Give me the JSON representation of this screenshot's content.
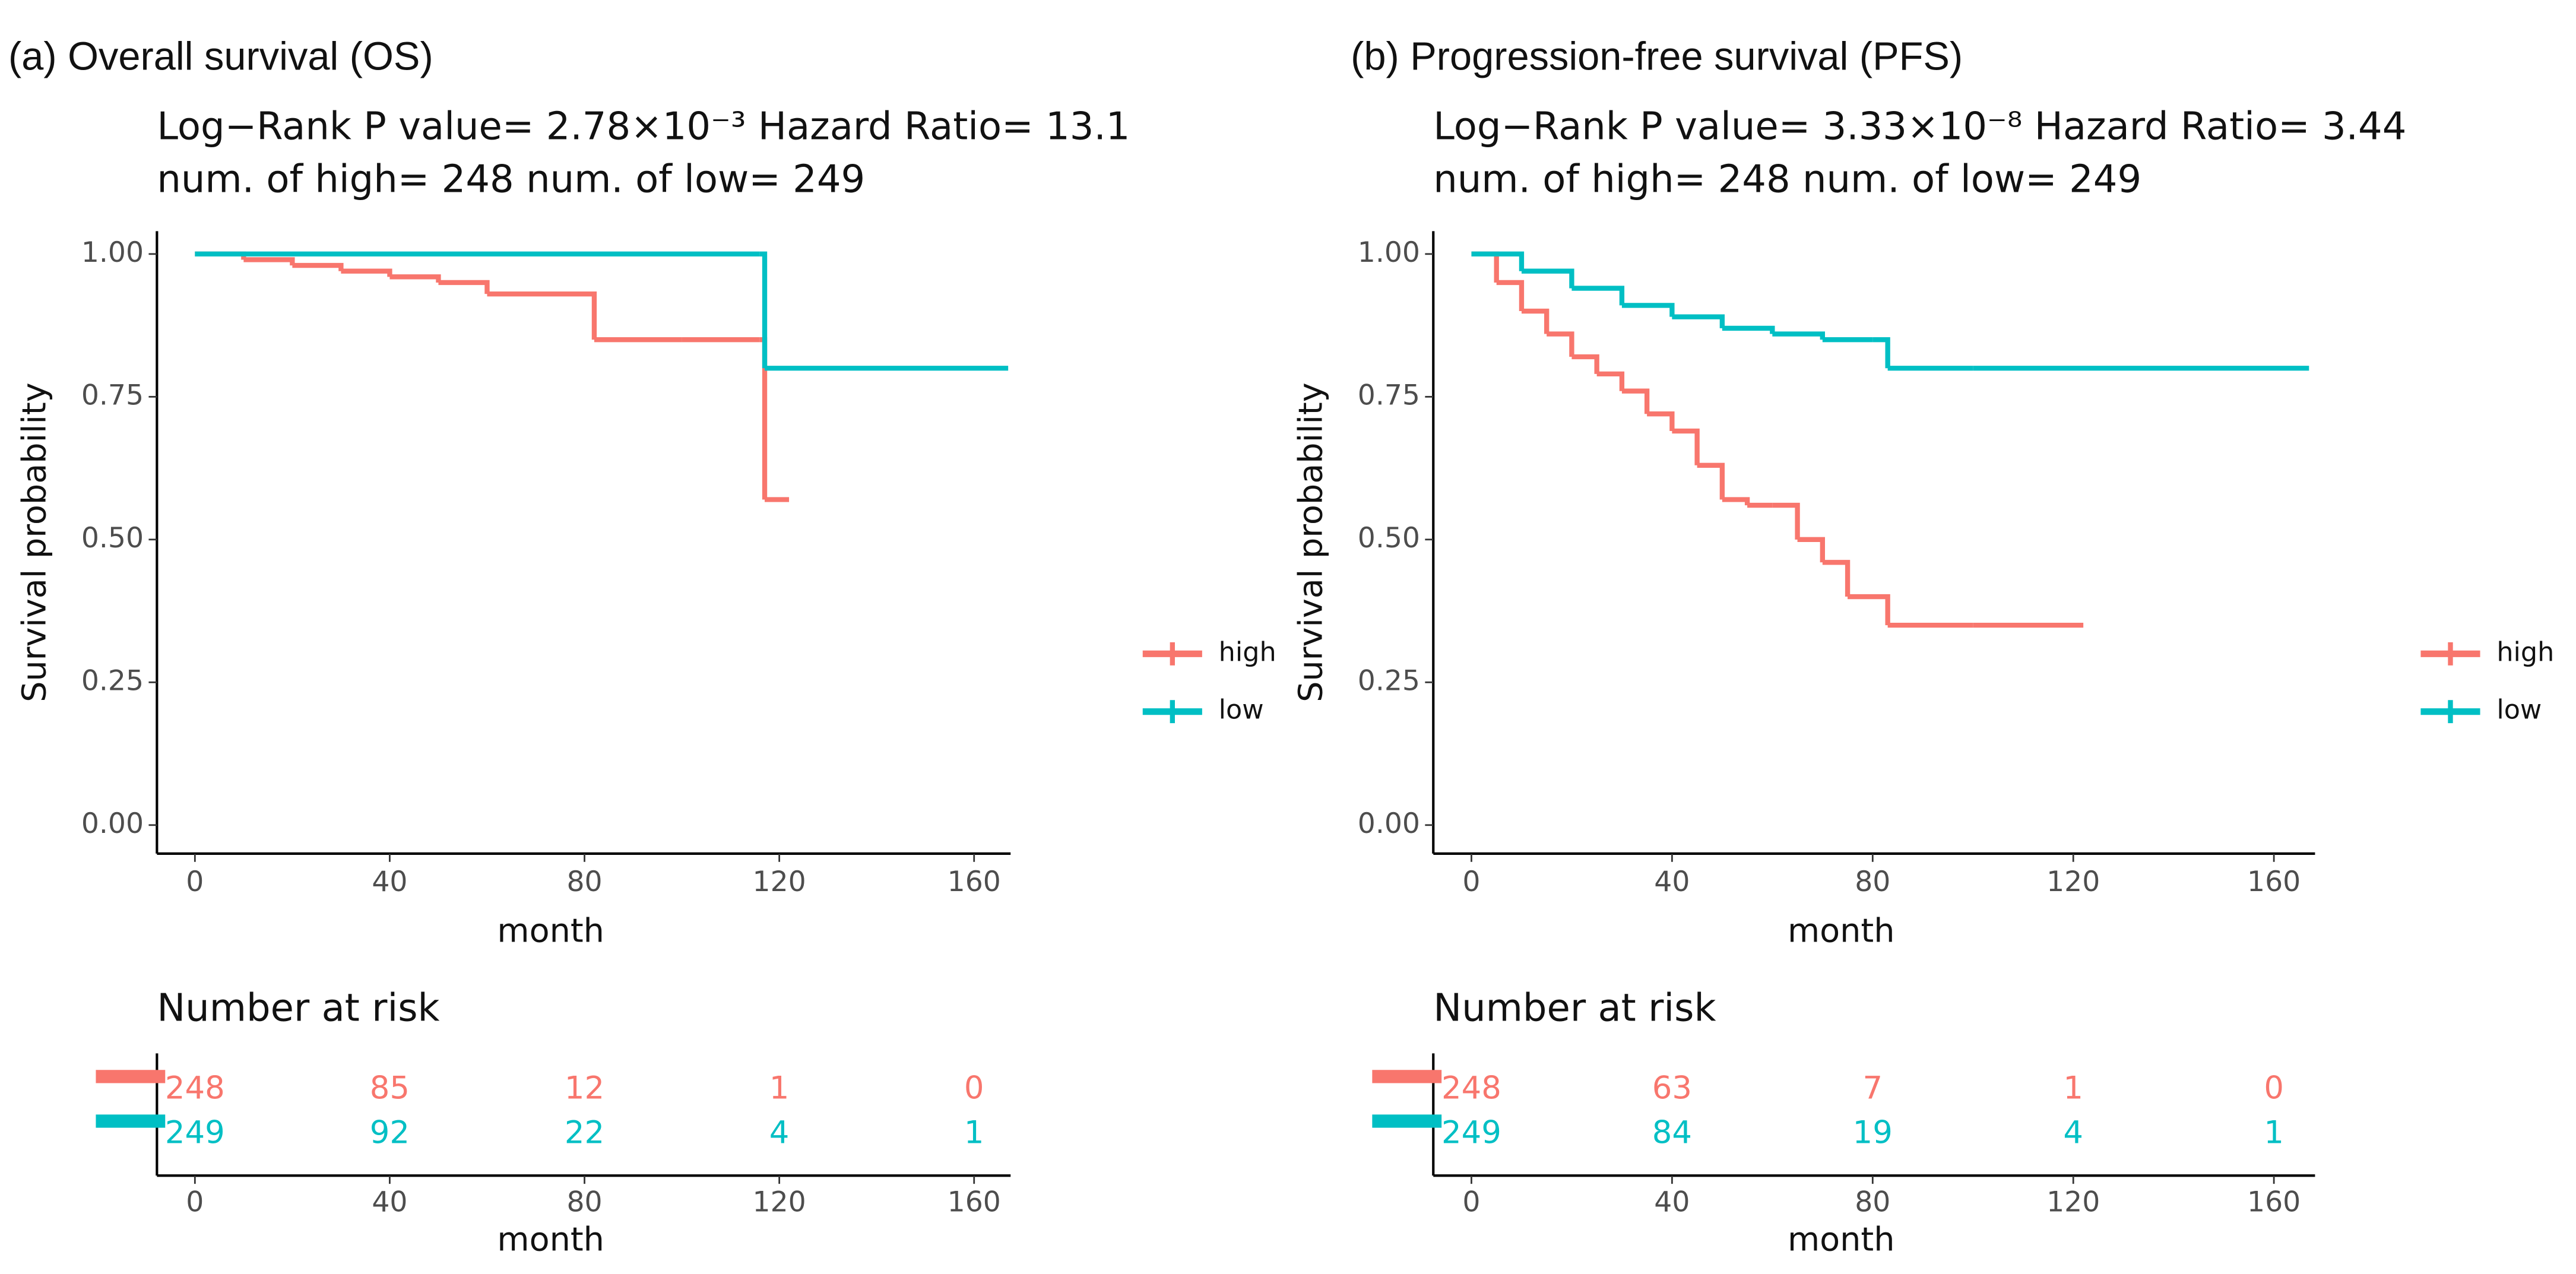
{
  "chart_data": [
    {
      "type": "line",
      "step": true,
      "title": "(a) Overall survival (OS)",
      "subtitle": [
        "Log−Rank P value= 2.78×10⁻³  Hazard Ratio= 13.1",
        "num. of high= 248  num. of low= 249"
      ],
      "xlabel": "month",
      "ylabel": "Survival probability",
      "xlim": [
        -7.8,
        167.5
      ],
      "ylim": [
        -0.05,
        1.04
      ],
      "xticks": [
        0,
        40,
        80,
        120,
        160
      ],
      "yticks": [
        {
          "value": 0,
          "label": "0.00"
        },
        {
          "value": 0.25,
          "label": "0.25"
        },
        {
          "value": 0.5,
          "label": "0.50"
        },
        {
          "value": 0.75,
          "label": "0.75"
        },
        {
          "value": 1,
          "label": "1.00"
        }
      ],
      "series": [
        {
          "name": "high",
          "color": "#F8766D",
          "x": [
            0,
            10,
            20,
            30,
            40,
            50,
            60,
            70,
            82,
            100,
            116,
            117,
            122
          ],
          "values": [
            1,
            0.99,
            0.98,
            0.97,
            0.96,
            0.95,
            0.93,
            0.93,
            0.85,
            0.85,
            0.85,
            0.57,
            0.57
          ]
        },
        {
          "name": "low",
          "color": "#00BFC4",
          "x": [
            0,
            116,
            117,
            167
          ],
          "values": [
            1,
            1,
            0.8,
            0.8
          ]
        }
      ],
      "risk_table": {
        "title": "Number at risk",
        "x": [
          0,
          40,
          80,
          120,
          160
        ],
        "rows": [
          {
            "color": "#F8766D",
            "values": [
              248,
              85,
              12,
              1,
              0
            ]
          },
          {
            "color": "#00BFC4",
            "values": [
              249,
              92,
              22,
              4,
              1
            ]
          }
        ],
        "xticks": [
          0,
          40,
          80,
          120,
          160
        ],
        "xlabel": "month"
      }
    },
    {
      "type": "line",
      "step": true,
      "title": "(b) Progression-free survival (PFS)",
      "subtitle": [
        "Log−Rank P value= 3.33×10⁻⁸  Hazard Ratio= 3.44",
        "num. of high= 248  num. of low= 249"
      ],
      "xlabel": "month",
      "ylabel": "Survival probability",
      "xlim": [
        -7.6,
        168.2
      ],
      "ylim": [
        -0.05,
        1.04
      ],
      "xticks": [
        0,
        40,
        80,
        120,
        160
      ],
      "yticks": [
        {
          "value": 0,
          "label": "0.00"
        },
        {
          "value": 0.25,
          "label": "0.25"
        },
        {
          "value": 0.5,
          "label": "0.50"
        },
        {
          "value": 0.75,
          "label": "0.75"
        },
        {
          "value": 1,
          "label": "1.00"
        }
      ],
      "series": [
        {
          "name": "high",
          "color": "#F8766D",
          "x": [
            0,
            5,
            10,
            15,
            20,
            25,
            30,
            35,
            40,
            45,
            50,
            55,
            60,
            65,
            70,
            75,
            83,
            100,
            122
          ],
          "values": [
            1,
            0.95,
            0.9,
            0.86,
            0.82,
            0.79,
            0.76,
            0.72,
            0.69,
            0.63,
            0.57,
            0.56,
            0.56,
            0.5,
            0.46,
            0.4,
            0.35,
            0.35,
            0.35
          ]
        },
        {
          "name": "low",
          "color": "#00BFC4",
          "x": [
            0,
            10,
            20,
            30,
            40,
            50,
            60,
            70,
            80,
            83,
            100,
            167
          ],
          "values": [
            1,
            0.97,
            0.94,
            0.91,
            0.89,
            0.87,
            0.86,
            0.85,
            0.85,
            0.8,
            0.8,
            0.8
          ]
        }
      ],
      "risk_table": {
        "title": "Number at risk",
        "x": [
          0,
          40,
          80,
          120,
          160
        ],
        "rows": [
          {
            "color": "#F8766D",
            "values": [
              248,
              63,
              7,
              1,
              0
            ]
          },
          {
            "color": "#00BFC4",
            "values": [
              249,
              84,
              19,
              4,
              1
            ]
          }
        ],
        "xticks": [
          0,
          40,
          80,
          120,
          160
        ],
        "xlabel": "month"
      }
    }
  ]
}
